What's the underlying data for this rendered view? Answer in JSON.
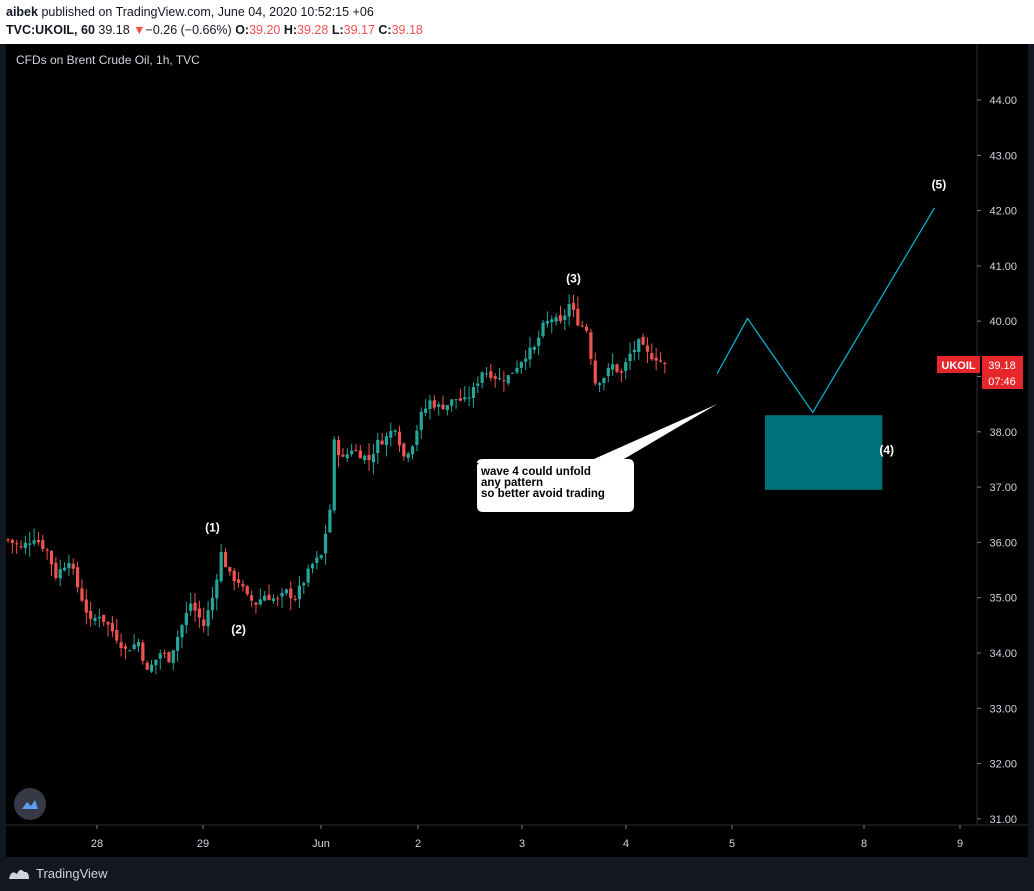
{
  "header": {
    "author": "aibek",
    "published_text": "published on TradingView.com, June 04, 2020 10:52:15 +06",
    "symbol": "TVC:UKOIL, 60",
    "price": "39.18",
    "change_arrow": "▼",
    "change": "−0.26 (−0.66%)",
    "o_label": "O:",
    "o_value": "39.20",
    "h_label": "H:",
    "h_value": "39.28",
    "l_label": "L:",
    "l_value": "39.17",
    "c_label": "C:",
    "c_value": "39.18"
  },
  "chart": {
    "title": "CFDs on Brent Crude Oil, 1h, TVC",
    "price_badge": {
      "symbol": "UKOIL",
      "price": "39.18",
      "countdown": "07:46"
    },
    "note": {
      "lines": [
        "wave 4 could unfold",
        "any pattern",
        "so better avoid trading"
      ]
    },
    "colors": {
      "background": "#000000",
      "up": "#26a69a",
      "down": "#ef5350",
      "projection": "#00bcd4",
      "target_box": "#00707a",
      "badge": "#e5262b"
    }
  },
  "footer": {
    "brand": "TradingView"
  },
  "chart_data": {
    "type": "candlestick",
    "title": "CFDs on Brent Crude Oil, 1h, TVC",
    "y_ticks": [
      "44.00",
      "43.00",
      "42.00",
      "41.00",
      "40.00",
      "39.00",
      "38.00",
      "37.00",
      "36.00",
      "35.00",
      "34.00",
      "33.00",
      "32.00",
      "31.00"
    ],
    "ylim": [
      30.8,
      45.0
    ],
    "x_ticks": [
      "28",
      "29",
      "Jun",
      "2",
      "3",
      "4",
      "5",
      "8",
      "9"
    ],
    "last_price": 39.18,
    "close_path": [
      [
        0,
        36.05
      ],
      [
        3,
        35.9
      ],
      [
        6,
        36.1
      ],
      [
        9,
        35.85
      ],
      [
        11,
        35.4
      ],
      [
        14,
        35.7
      ],
      [
        16,
        35.2
      ],
      [
        19,
        34.55
      ],
      [
        21,
        34.7
      ],
      [
        24,
        34.4
      ],
      [
        27,
        34.05
      ],
      [
        30,
        34.2
      ],
      [
        32,
        33.65
      ],
      [
        35,
        34.0
      ],
      [
        37,
        33.9
      ],
      [
        40,
        34.5
      ],
      [
        42,
        34.9
      ],
      [
        45,
        34.5
      ],
      [
        47,
        35.0
      ],
      [
        49,
        35.8
      ],
      [
        51,
        35.4
      ],
      [
        53,
        35.3
      ],
      [
        55,
        35.0
      ],
      [
        57,
        34.9
      ],
      [
        59,
        35.05
      ],
      [
        62,
        34.95
      ],
      [
        64,
        35.1
      ],
      [
        66,
        35.0
      ],
      [
        68,
        35.3
      ],
      [
        70,
        35.6
      ],
      [
        72,
        35.75
      ],
      [
        74,
        36.6
      ],
      [
        75,
        37.8
      ],
      [
        77,
        37.5
      ],
      [
        79,
        37.7
      ],
      [
        81,
        37.6
      ],
      [
        83,
        37.5
      ],
      [
        85,
        37.8
      ],
      [
        87,
        37.9
      ],
      [
        89,
        38.1
      ],
      [
        91,
        37.55
      ],
      [
        93,
        37.8
      ],
      [
        95,
        38.3
      ],
      [
        97,
        38.55
      ],
      [
        99,
        38.45
      ],
      [
        101,
        38.5
      ],
      [
        103,
        38.6
      ],
      [
        105,
        38.55
      ],
      [
        107,
        38.75
      ],
      [
        109,
        39.1
      ],
      [
        111,
        39.05
      ],
      [
        113,
        38.95
      ],
      [
        115,
        39.0
      ],
      [
        117,
        39.2
      ],
      [
        119,
        39.4
      ],
      [
        121,
        39.5
      ],
      [
        123,
        39.9
      ],
      [
        125,
        40.05
      ],
      [
        127,
        39.95
      ],
      [
        129,
        40.3
      ],
      [
        131,
        40.0
      ],
      [
        133,
        39.85
      ],
      [
        135,
        38.9
      ],
      [
        137,
        39.0
      ],
      [
        139,
        39.2
      ],
      [
        141,
        39.05
      ],
      [
        143,
        39.4
      ],
      [
        145,
        39.6
      ],
      [
        147,
        39.4
      ],
      [
        149,
        39.35
      ],
      [
        151,
        39.2
      ]
    ],
    "wave_labels": [
      {
        "label": "(1)",
        "at_bar": 47,
        "price": 36.2
      },
      {
        "label": "(2)",
        "at_bar": 53,
        "price": 34.35
      },
      {
        "label": "(3)",
        "at_bar": 130,
        "price": 40.7
      },
      {
        "label": "(4)",
        "at_bar": 202,
        "price": 37.6
      },
      {
        "label": "(5)",
        "at_bar": 214,
        "price": 42.4
      }
    ],
    "projection": [
      [
        163,
        39.05
      ],
      [
        170,
        40.05
      ],
      [
        185,
        38.35
      ],
      [
        213,
        42.05
      ]
    ],
    "target_zone": {
      "price_top": 38.3,
      "price_bottom": 36.95,
      "bar_start": 174,
      "bar_end": 201
    },
    "note_pointer_tip": [
      163,
      38.5
    ]
  }
}
